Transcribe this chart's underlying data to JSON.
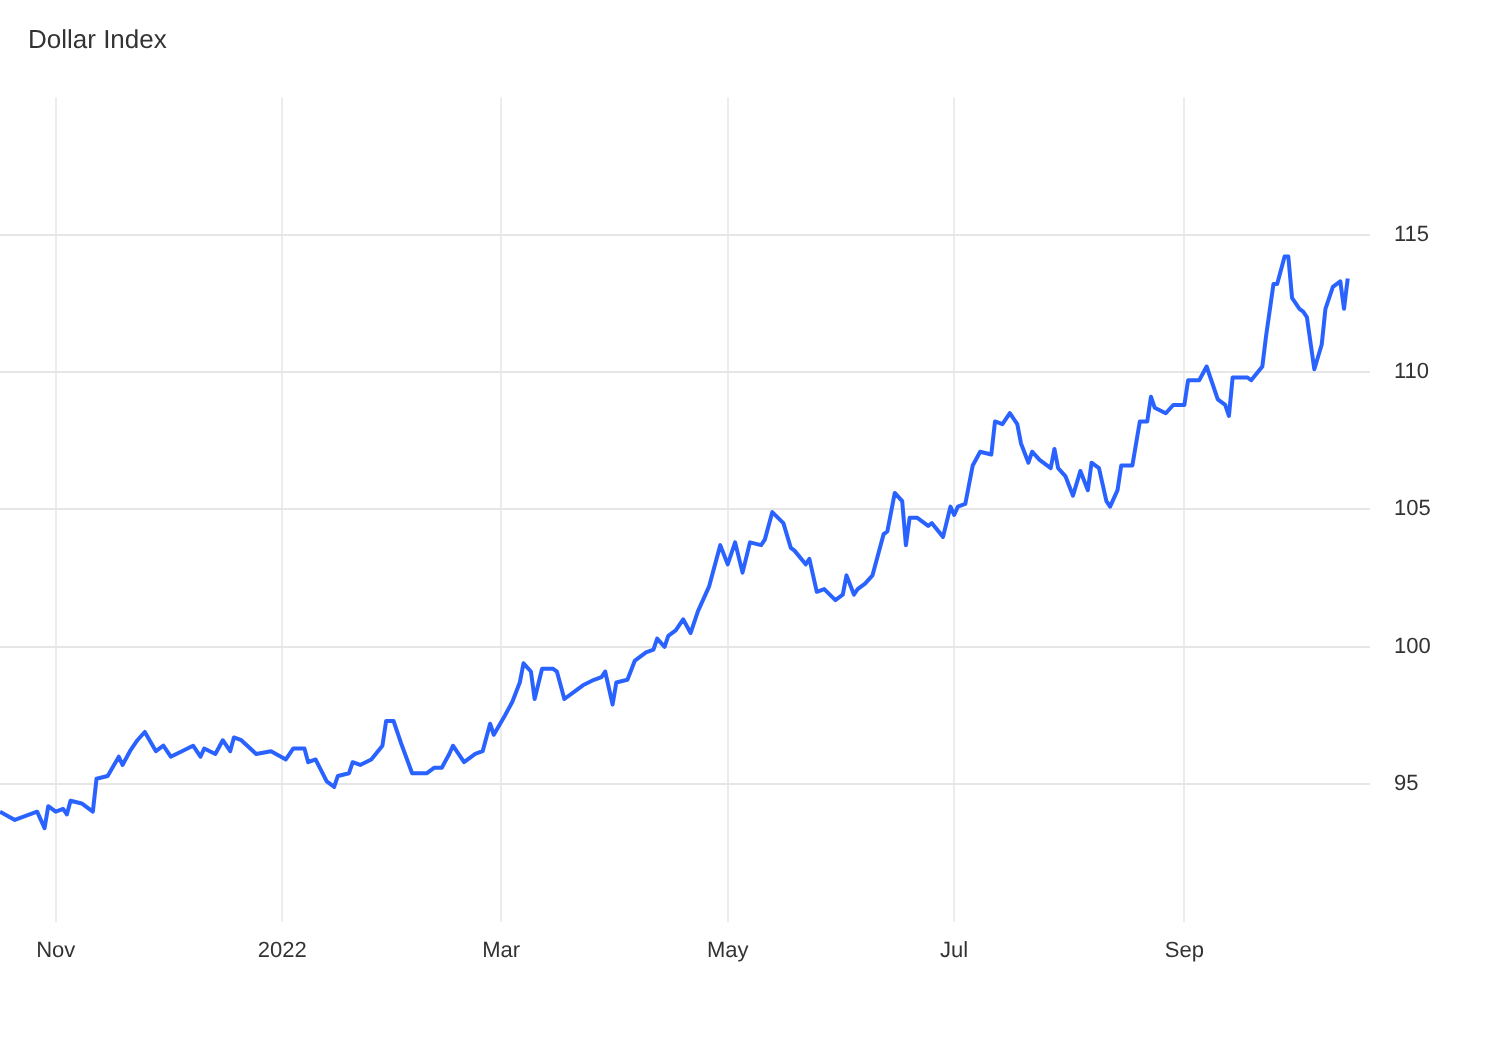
{
  "chart_data": {
    "type": "line",
    "title": "Dollar Index",
    "x": [
      "2021-10-17",
      "2021-10-21",
      "2021-10-23",
      "2021-10-27",
      "2021-10-29",
      "2021-10-30",
      "2021-11-01",
      "2021-11-03",
      "2021-11-04",
      "2021-11-05",
      "2021-11-08",
      "2021-11-11",
      "2021-11-12",
      "2021-11-15",
      "2021-11-18",
      "2021-11-19",
      "2021-11-21",
      "2021-11-23",
      "2021-11-25",
      "2021-11-28",
      "2021-11-30",
      "2021-12-02",
      "2021-12-05",
      "2021-12-08",
      "2021-12-10",
      "2021-12-11",
      "2021-12-14",
      "2021-12-16",
      "2021-12-18",
      "2021-12-19",
      "2021-12-21",
      "2021-12-25",
      "2021-12-29",
      "2022-01-02",
      "2022-01-04",
      "2022-01-07",
      "2022-01-08",
      "2022-01-10",
      "2022-01-13",
      "2022-01-15",
      "2022-01-16",
      "2022-01-19",
      "2022-01-20",
      "2022-01-22",
      "2022-01-25",
      "2022-01-28",
      "2022-01-29",
      "2022-01-31",
      "2022-02-02",
      "2022-02-05",
      "2022-02-09",
      "2022-02-11",
      "2022-02-13",
      "2022-02-15",
      "2022-02-16",
      "2022-02-19",
      "2022-02-22",
      "2022-02-24",
      "2022-02-26",
      "2022-02-27",
      "2022-03-02",
      "2022-03-04",
      "2022-03-06",
      "2022-03-07",
      "2022-03-09",
      "2022-03-10",
      "2022-03-12",
      "2022-03-15",
      "2022-03-16",
      "2022-03-18",
      "2022-03-21",
      "2022-03-23",
      "2022-03-26",
      "2022-03-28",
      "2022-03-29",
      "2022-03-31",
      "2022-04-01",
      "2022-04-04",
      "2022-04-06",
      "2022-04-09",
      "2022-04-11",
      "2022-04-12",
      "2022-04-14",
      "2022-04-15",
      "2022-04-17",
      "2022-04-19",
      "2022-04-21",
      "2022-04-23",
      "2022-04-26",
      "2022-04-29",
      "2022-05-01",
      "2022-05-03",
      "2022-05-05",
      "2022-05-07",
      "2022-05-10",
      "2022-05-11",
      "2022-05-13",
      "2022-05-16",
      "2022-05-18",
      "2022-05-19",
      "2022-05-22",
      "2022-05-23",
      "2022-05-25",
      "2022-05-27",
      "2022-05-30",
      "2022-06-01",
      "2022-06-02",
      "2022-06-04",
      "2022-06-05",
      "2022-06-07",
      "2022-06-09",
      "2022-06-12",
      "2022-06-13",
      "2022-06-15",
      "2022-06-17",
      "2022-06-18",
      "2022-06-19",
      "2022-06-21",
      "2022-06-24",
      "2022-06-25",
      "2022-06-28",
      "2022-06-30",
      "2022-07-01",
      "2022-07-02",
      "2022-07-04",
      "2022-07-06",
      "2022-07-08",
      "2022-07-11",
      "2022-07-12",
      "2022-07-14",
      "2022-07-16",
      "2022-07-18",
      "2022-07-19",
      "2022-07-21",
      "2022-07-22",
      "2022-07-24",
      "2022-07-27",
      "2022-07-28",
      "2022-07-29",
      "2022-07-31",
      "2022-08-02",
      "2022-08-04",
      "2022-08-06",
      "2022-08-07",
      "2022-08-09",
      "2022-08-11",
      "2022-08-12",
      "2022-08-14",
      "2022-08-15",
      "2022-08-18",
      "2022-08-20",
      "2022-08-22",
      "2022-08-23",
      "2022-08-24",
      "2022-08-27",
      "2022-08-29",
      "2022-09-01",
      "2022-09-02",
      "2022-09-05",
      "2022-09-07",
      "2022-09-08",
      "2022-09-10",
      "2022-09-12",
      "2022-09-13",
      "2022-09-14",
      "2022-09-16",
      "2022-09-18",
      "2022-09-19",
      "2022-09-22",
      "2022-09-23",
      "2022-09-25",
      "2022-09-26",
      "2022-09-28",
      "2022-09-29",
      "2022-09-30",
      "2022-10-02",
      "2022-10-03",
      "2022-10-04",
      "2022-10-06",
      "2022-10-08",
      "2022-10-09",
      "2022-10-11",
      "2022-10-13",
      "2022-10-14",
      "2022-10-15"
    ],
    "series": [
      {
        "color": "#2962ff",
        "values": [
          94.0,
          93.7,
          93.8,
          94.0,
          93.4,
          94.2,
          94.0,
          94.1,
          93.9,
          94.4,
          94.3,
          94.0,
          95.2,
          95.3,
          96.0,
          95.7,
          96.2,
          96.6,
          96.9,
          96.2,
          96.4,
          96.0,
          96.2,
          96.4,
          96.0,
          96.3,
          96.1,
          96.6,
          96.2,
          96.7,
          96.6,
          96.1,
          96.2,
          95.9,
          96.3,
          96.3,
          95.8,
          95.9,
          95.1,
          94.9,
          95.3,
          95.4,
          95.8,
          95.7,
          95.9,
          96.4,
          97.3,
          97.3,
          96.5,
          95.4,
          95.4,
          95.6,
          95.6,
          96.1,
          96.4,
          95.8,
          96.1,
          96.2,
          97.2,
          96.8,
          97.5,
          98.0,
          98.7,
          99.4,
          99.1,
          98.1,
          99.2,
          99.2,
          99.1,
          98.1,
          98.4,
          98.6,
          98.8,
          98.9,
          99.1,
          97.9,
          98.7,
          98.8,
          99.5,
          99.8,
          99.9,
          100.3,
          100.0,
          100.4,
          100.6,
          101.0,
          100.5,
          101.3,
          102.2,
          103.7,
          103.0,
          103.8,
          102.7,
          103.8,
          103.7,
          103.9,
          104.9,
          104.5,
          103.6,
          103.5,
          103.0,
          103.2,
          102.0,
          102.1,
          101.7,
          101.9,
          102.6,
          101.9,
          102.1,
          102.3,
          102.6,
          104.1,
          104.2,
          105.6,
          105.3,
          103.7,
          104.7,
          104.7,
          104.4,
          104.5,
          104.0,
          105.1,
          104.8,
          105.1,
          105.2,
          106.6,
          107.1,
          107.0,
          108.2,
          108.1,
          108.5,
          108.1,
          107.4,
          106.7,
          107.1,
          106.8,
          106.5,
          107.2,
          106.5,
          106.2,
          105.5,
          106.4,
          105.7,
          106.7,
          106.5,
          105.3,
          105.1,
          105.7,
          106.6,
          106.6,
          108.2,
          108.2,
          109.1,
          108.7,
          108.5,
          108.8,
          108.8,
          109.7,
          109.7,
          110.2,
          109.8,
          109.0,
          108.8,
          108.4,
          109.8,
          109.8,
          109.8,
          109.7,
          110.2,
          111.3,
          113.2,
          113.2,
          114.2,
          114.2,
          112.7,
          112.3,
          112.2,
          112.0,
          110.1,
          111.0,
          112.3,
          113.1,
          113.3,
          112.3,
          113.4
        ]
      }
    ],
    "xlim": [
      "2021-10-17",
      "2022-10-21"
    ],
    "xticks": [
      {
        "value": "2021-11-01",
        "label": "Nov"
      },
      {
        "value": "2022-01-01",
        "label": "2022"
      },
      {
        "value": "2022-03-01",
        "label": "Mar"
      },
      {
        "value": "2022-05-01",
        "label": "May"
      },
      {
        "value": "2022-07-01",
        "label": "Jul"
      },
      {
        "value": "2022-09-01",
        "label": "Sep"
      }
    ],
    "ylim": [
      90,
      120
    ],
    "yticks": [
      95,
      100,
      105,
      110,
      115
    ],
    "grid": true,
    "legend": false,
    "marker": "none",
    "line_style": "solid"
  }
}
